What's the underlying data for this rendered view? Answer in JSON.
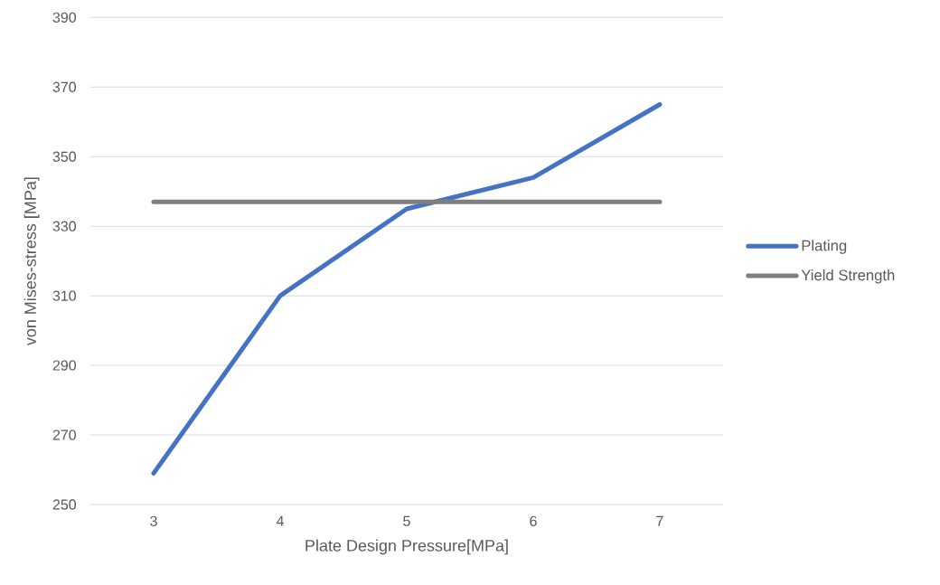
{
  "chart_data": {
    "type": "line",
    "xlabel": "Plate Design Pressure[MPa]",
    "ylabel": "von Mises-stress [MPa]",
    "categories": [
      "3",
      "4",
      "5",
      "6",
      "7"
    ],
    "series": [
      {
        "name": "Plating",
        "color": "#4472c4",
        "values": [
          259,
          310,
          335,
          344,
          365
        ]
      },
      {
        "name": "Yield Strength",
        "color": "#7f7f7f",
        "values": [
          337,
          337,
          337,
          337,
          337
        ]
      }
    ],
    "ylim": [
      250,
      390
    ],
    "yticks": [
      250,
      270,
      290,
      310,
      330,
      350,
      370,
      390
    ],
    "grid": "y",
    "legend": "right",
    "marker": "none",
    "line_style": "solid"
  }
}
